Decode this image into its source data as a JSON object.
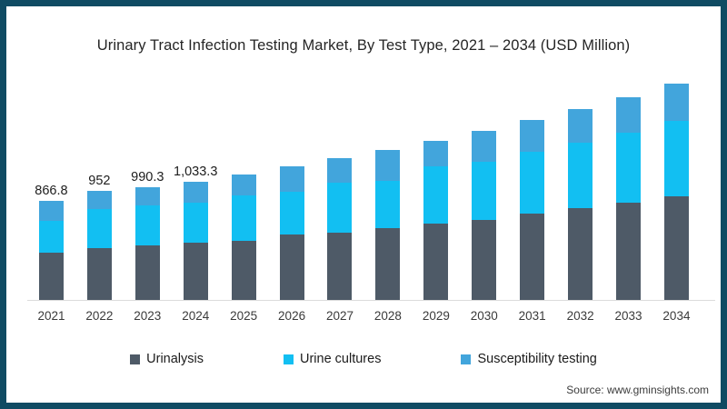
{
  "title": "Urinary Tract Infection Testing Market, By Test Type, 2021 – 2034 (USD Million)",
  "source": "Source: www.gminsights.com",
  "colors": {
    "frame_border": "#0f4b63",
    "axis_line": "#dcdcdc",
    "urinalysis": "#4e5a67",
    "urine_cultures": "#12bff2",
    "susceptibility_testing": "#42a5dc"
  },
  "chart_data": {
    "type": "bar",
    "stacked": true,
    "title": "Urinary Tract Infection Testing Market, By Test Type, 2021 – 2034 (USD Million)",
    "xlabel": "",
    "ylabel": "USD Million",
    "grid": false,
    "legend_position": "bottom",
    "categories": [
      "2021",
      "2022",
      "2023",
      "2024",
      "2025",
      "2026",
      "2027",
      "2028",
      "2029",
      "2030",
      "2031",
      "2032",
      "2033",
      "2034"
    ],
    "series": [
      {
        "name": "Urinalysis",
        "color": "#4e5a67",
        "values": [
          411,
          451,
          474,
          499,
          521,
          570,
          591,
          628,
          668,
          702,
          755,
          801,
          853,
          907
        ]
      },
      {
        "name": "Urine cultures",
        "color": "#12bff2",
        "values": [
          278,
          348,
          350,
          356,
          396,
          379,
          437,
          411,
          503,
          509,
          538,
          577,
          612,
          662
        ]
      },
      {
        "name": "Susceptibility testing",
        "color": "#42a5dc",
        "values": [
          178,
          153,
          166,
          178,
          181,
          218,
          212,
          274,
          224,
          266,
          283,
          292,
          310,
          321
        ]
      }
    ],
    "totals": [
      866.8,
      952,
      990.3,
      1033.3,
      1098,
      1167,
      1240,
      1313,
      1395,
      1477,
      1576,
      1670,
      1775,
      1890
    ],
    "bar_value_labels": [
      "866.8",
      "952",
      "990.3",
      "1,033.3",
      "",
      "",
      "",
      "",
      "",
      "",
      "",
      "",
      "",
      ""
    ],
    "ylim": [
      0,
      2000
    ]
  }
}
